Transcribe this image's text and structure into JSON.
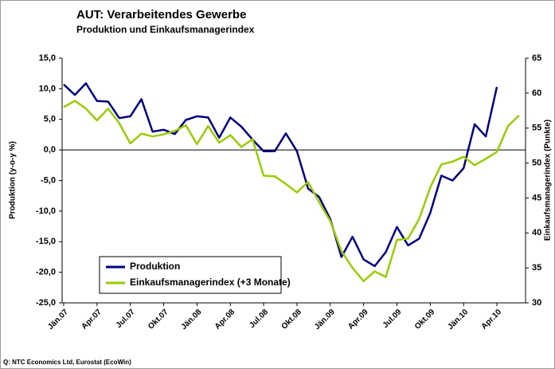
{
  "chart_data": {
    "type": "line",
    "title": "AUT: Verarbeitendes Gewerbe",
    "subtitle": "Produktion und Einkaufsmanagerindex",
    "source": "Q: NTC Economics Ltd, Eurostat (EcoWin)",
    "ylabel": "Produktion (y-o-y %)",
    "y2label": "Einkaufsmanagerindex (Punkte)",
    "categories": [
      "Jän.07",
      null,
      null,
      "Apr.07",
      null,
      null,
      "Jul.07",
      null,
      null,
      "Okt.07",
      null,
      null,
      "Jän.08",
      null,
      null,
      "Apr.08",
      null,
      null,
      "Jul.08",
      null,
      null,
      "Okt.08",
      null,
      null,
      "Jän.09",
      null,
      null,
      "Apr.09",
      null,
      null,
      "Jul.09",
      null,
      null,
      "Okt.09",
      null,
      null,
      "Jän.10",
      null,
      null,
      "Apr.10",
      null,
      null
    ],
    "series": [
      {
        "name": "Produktion",
        "color": "#000080",
        "axis": "y",
        "values": [
          10.7,
          9.0,
          10.9,
          8.0,
          7.9,
          5.2,
          5.5,
          8.3,
          3.0,
          3.3,
          2.6,
          4.9,
          5.5,
          5.3,
          2.0,
          5.3,
          3.8,
          1.7,
          -0.2,
          -0.2,
          2.7,
          -0.2,
          -6.3,
          -7.7,
          -11.3,
          -17.5,
          -14.2,
          -17.9,
          -19.0,
          -16.7,
          -12.6,
          -15.6,
          -14.5,
          -10.3,
          -4.2,
          -5.0,
          -3.0,
          4.2,
          2.2,
          10.3,
          null,
          null
        ]
      },
      {
        "name": "Einkaufsmanagerindex (+3 Monate)",
        "color": "#99cc00",
        "axis": "y2",
        "values": [
          58.0,
          58.9,
          57.8,
          56.1,
          57.8,
          55.7,
          52.8,
          54.2,
          53.8,
          54.1,
          54.6,
          55.4,
          52.7,
          55.3,
          52.9,
          54.0,
          52.3,
          53.4,
          48.2,
          48.1,
          47.0,
          45.8,
          47.3,
          44.4,
          41.7,
          37.4,
          35.0,
          33.1,
          34.5,
          33.7,
          39.0,
          39.2,
          42.0,
          46.5,
          49.8,
          50.2,
          50.9,
          49.7,
          50.6,
          51.6,
          55.3,
          56.8
        ]
      }
    ],
    "ylim": [
      -25,
      15
    ],
    "yticks": [
      {
        "value": -25,
        "label": "-25,0"
      },
      {
        "value": -20,
        "label": "-20,0"
      },
      {
        "value": -15,
        "label": "-15,0"
      },
      {
        "value": -10,
        "label": "-10,0"
      },
      {
        "value": -5,
        "label": "-5,0"
      },
      {
        "value": 0,
        "label": "0,0"
      },
      {
        "value": 5,
        "label": "5,0"
      },
      {
        "value": 10,
        "label": "10,0"
      },
      {
        "value": 15,
        "label": "15,0"
      }
    ],
    "y2lim": [
      30,
      65
    ],
    "y2ticks": [
      30,
      35,
      40,
      45,
      50,
      55,
      60,
      65
    ],
    "grid": false,
    "legend": "lower left"
  }
}
